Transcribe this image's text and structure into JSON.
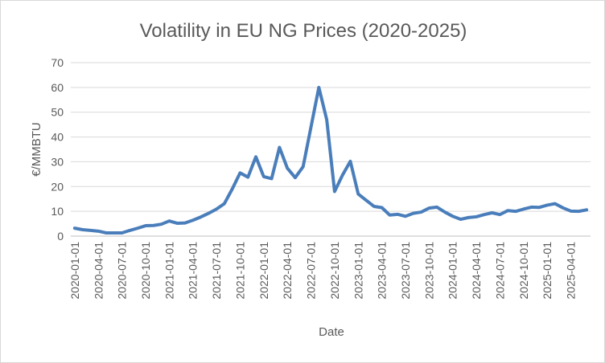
{
  "chart_data": {
    "type": "line",
    "title": "Volatility in EU NG Prices (2020-2025)",
    "xlabel": "Date",
    "ylabel": "€/MMBTU",
    "ylim": [
      0,
      70
    ],
    "yticks": [
      "0",
      "10",
      "20",
      "30",
      "40",
      "50",
      "60",
      "70"
    ],
    "xtick_labels": [
      "2020-01-01",
      "2020-04-01",
      "2020-07-01",
      "2020-10-01",
      "2021-01-01",
      "2021-04-01",
      "2021-07-01",
      "2021-10-01",
      "2022-01-01",
      "2022-04-01",
      "2022-07-01",
      "2022-10-01",
      "2023-01-01",
      "2023-04-01",
      "2023-07-01",
      "2023-10-01",
      "2024-01-01",
      "2024-04-01",
      "2024-07-01",
      "2024-10-01",
      "2025-01-01",
      "2025-04-01"
    ],
    "grid": true,
    "legend": "none",
    "series_color": "#4a7ebb",
    "x": [
      "2020-01",
      "2020-02",
      "2020-03",
      "2020-04",
      "2020-05",
      "2020-06",
      "2020-07",
      "2020-08",
      "2020-09",
      "2020-10",
      "2020-11",
      "2020-12",
      "2021-01",
      "2021-02",
      "2021-03",
      "2021-04",
      "2021-05",
      "2021-06",
      "2021-07",
      "2021-08",
      "2021-09",
      "2021-10",
      "2021-11",
      "2021-12",
      "2022-01",
      "2022-02",
      "2022-03",
      "2022-04",
      "2022-05",
      "2022-06",
      "2022-07",
      "2022-08",
      "2022-09",
      "2022-10",
      "2022-11",
      "2022-12",
      "2023-01",
      "2023-02",
      "2023-03",
      "2023-04",
      "2023-05",
      "2023-06",
      "2023-07",
      "2023-08",
      "2023-09",
      "2023-10",
      "2023-11",
      "2023-12",
      "2024-01",
      "2024-02",
      "2024-03",
      "2024-04",
      "2024-05",
      "2024-06",
      "2024-07",
      "2024-08",
      "2024-09",
      "2024-10",
      "2024-11",
      "2024-12",
      "2025-01",
      "2025-02",
      "2025-03",
      "2025-04",
      "2025-05",
      "2025-06"
    ],
    "values": [
      3.2,
      2.6,
      2.3,
      2.0,
      1.3,
      1.3,
      1.3,
      2.3,
      3.2,
      4.2,
      4.3,
      4.8,
      6.1,
      5.2,
      5.3,
      6.4,
      7.7,
      9.2,
      10.9,
      13.1,
      19.0,
      25.5,
      23.8,
      32.0,
      24.0,
      23.2,
      35.8,
      27.4,
      23.6,
      28.0,
      44.0,
      60.0,
      47.0,
      18.0,
      24.6,
      30.2,
      17.0,
      14.5,
      12.0,
      11.5,
      8.5,
      8.8,
      8.0,
      9.2,
      9.7,
      11.3,
      11.7,
      9.7,
      8.0,
      6.8,
      7.5,
      7.8,
      8.7,
      9.4,
      8.7,
      10.3,
      10.0,
      10.9,
      11.7,
      11.6,
      12.5,
      13.1,
      11.4,
      10.1,
      10.0,
      10.6
    ]
  }
}
